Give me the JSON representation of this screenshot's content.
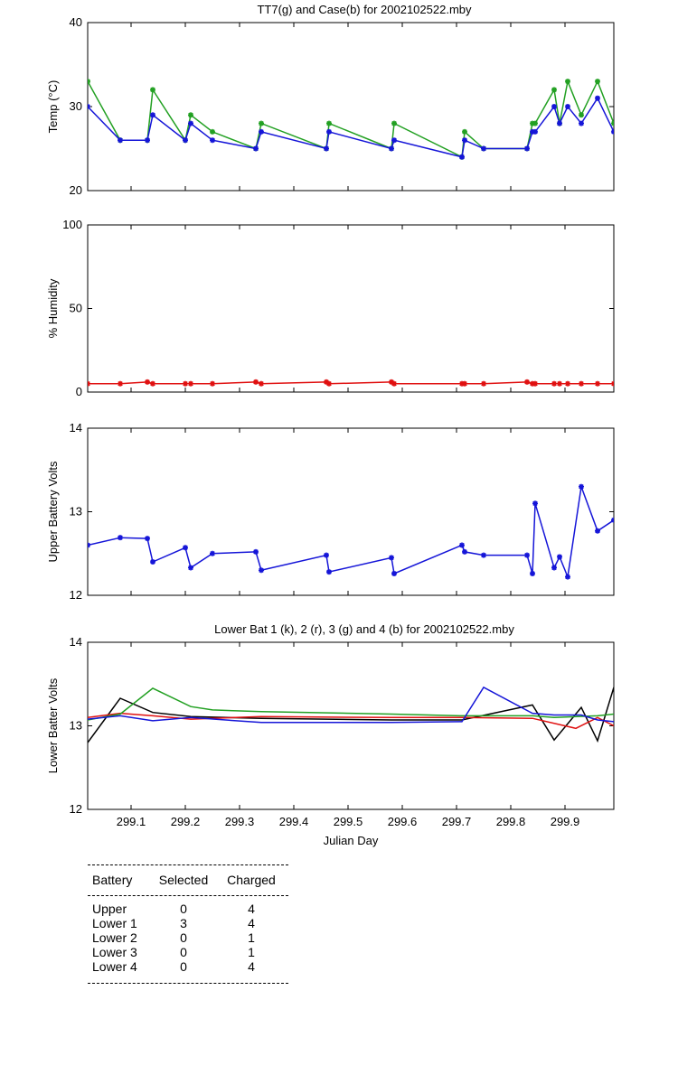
{
  "chart_data": [
    {
      "type": "line",
      "title": "TT7(g) and Case(b) for 2002102522.mby",
      "xlabel": "",
      "ylabel": "Temp  (°C)",
      "xlim": [
        299.02,
        299.99
      ],
      "ylim": [
        20,
        40
      ],
      "yticks": [
        20,
        30,
        40
      ],
      "series": [
        {
          "name": "TT7",
          "color": "#22a022",
          "x": [
            299.02,
            299.08,
            299.13,
            299.14,
            299.2,
            299.21,
            299.25,
            299.33,
            299.34,
            299.46,
            299.465,
            299.58,
            299.585,
            299.71,
            299.715,
            299.75,
            299.83,
            299.84,
            299.845,
            299.88,
            299.89,
            299.905,
            299.93,
            299.96,
            299.99
          ],
          "y": [
            33,
            26,
            26,
            32,
            26,
            29,
            27,
            25,
            28,
            25,
            28,
            25,
            28,
            24,
            27,
            25,
            25,
            28,
            28,
            32,
            28,
            33,
            29,
            33,
            28
          ]
        },
        {
          "name": "Case",
          "color": "#1515d8",
          "x": [
            299.02,
            299.08,
            299.13,
            299.14,
            299.2,
            299.21,
            299.25,
            299.33,
            299.34,
            299.46,
            299.465,
            299.58,
            299.585,
            299.71,
            299.715,
            299.75,
            299.83,
            299.84,
            299.845,
            299.88,
            299.89,
            299.905,
            299.93,
            299.96,
            299.99
          ],
          "y": [
            30,
            26,
            26,
            29,
            26,
            28,
            26,
            25,
            27,
            25,
            27,
            25,
            26,
            24,
            26,
            25,
            25,
            27,
            27,
            30,
            28,
            30,
            28,
            31,
            27
          ]
        }
      ]
    },
    {
      "type": "line",
      "title": "",
      "xlabel": "",
      "ylabel": "% Humidity",
      "xlim": [
        299.02,
        299.99
      ],
      "ylim": [
        0,
        100
      ],
      "yticks": [
        0,
        50,
        100
      ],
      "series": [
        {
          "name": "Humidity",
          "color": "#e01010",
          "x": [
            299.02,
            299.08,
            299.13,
            299.14,
            299.2,
            299.21,
            299.25,
            299.33,
            299.34,
            299.46,
            299.465,
            299.58,
            299.585,
            299.71,
            299.715,
            299.75,
            299.83,
            299.84,
            299.845,
            299.88,
            299.89,
            299.905,
            299.93,
            299.96,
            299.99
          ],
          "y": [
            5,
            5,
            6,
            5,
            5,
            5,
            5,
            6,
            5,
            6,
            5,
            6,
            5,
            5,
            5,
            5,
            6,
            5,
            5,
            5,
            5,
            5,
            5,
            5,
            5
          ]
        }
      ]
    },
    {
      "type": "line",
      "title": "",
      "xlabel": "",
      "ylabel": "Upper Battery Volts",
      "xlim": [
        299.02,
        299.99
      ],
      "ylim": [
        12,
        14
      ],
      "yticks": [
        12,
        13,
        14
      ],
      "series": [
        {
          "name": "Upper",
          "color": "#1515d8",
          "x": [
            299.02,
            299.08,
            299.13,
            299.14,
            299.2,
            299.21,
            299.25,
            299.33,
            299.34,
            299.46,
            299.465,
            299.58,
            299.585,
            299.71,
            299.715,
            299.75,
            299.83,
            299.84,
            299.845,
            299.88,
            299.89,
            299.905,
            299.93,
            299.96,
            299.99
          ],
          "y": [
            12.6,
            12.69,
            12.68,
            12.4,
            12.57,
            12.33,
            12.5,
            12.52,
            12.3,
            12.48,
            12.28,
            12.45,
            12.26,
            12.6,
            12.52,
            12.48,
            12.48,
            12.26,
            13.1,
            12.33,
            12.46,
            12.22,
            13.3,
            12.77,
            12.9
          ]
        }
      ]
    },
    {
      "type": "line",
      "title": "Lower Bat 1 (k), 2 (r), 3 (g) and 4 (b) for 2002102522.mby",
      "xlabel": "Julian Day",
      "ylabel": "Lower Batter Volts",
      "xlim": [
        299.02,
        299.99
      ],
      "ylim": [
        12,
        14
      ],
      "yticks": [
        12,
        13,
        14
      ],
      "xticks": [
        "299.1",
        "299.2",
        "299.3",
        "299.4",
        "299.5",
        "299.6",
        "299.7",
        "299.8",
        "299.9"
      ],
      "series": [
        {
          "name": "Lower 1",
          "color": "#000000",
          "x": [
            299.02,
            299.08,
            299.14,
            299.21,
            299.34,
            299.58,
            299.71,
            299.84,
            299.88,
            299.93,
            299.96,
            299.99
          ],
          "y": [
            12.8,
            13.33,
            13.16,
            13.11,
            13.09,
            13.07,
            13.07,
            13.25,
            12.83,
            13.22,
            12.82,
            13.46
          ]
        },
        {
          "name": "Lower 2",
          "color": "#e01010",
          "x": [
            299.02,
            299.08,
            299.14,
            299.21,
            299.34,
            299.58,
            299.71,
            299.84,
            299.92,
            299.96,
            299.99
          ],
          "y": [
            13.1,
            13.15,
            13.12,
            13.08,
            13.11,
            13.1,
            13.1,
            13.09,
            12.97,
            13.1,
            13.0
          ]
        },
        {
          "name": "Lower 3",
          "color": "#22a022",
          "x": [
            299.02,
            299.08,
            299.14,
            299.21,
            299.25,
            299.34,
            299.58,
            299.71,
            299.84,
            299.88,
            299.96,
            299.99
          ],
          "y": [
            13.07,
            13.14,
            13.45,
            13.23,
            13.19,
            13.17,
            13.14,
            13.12,
            13.12,
            13.1,
            13.12,
            13.14
          ]
        },
        {
          "name": "Lower 4",
          "color": "#1515d8",
          "x": [
            299.02,
            299.08,
            299.14,
            299.21,
            299.34,
            299.58,
            299.71,
            299.75,
            299.84,
            299.88,
            299.93,
            299.96,
            299.99
          ],
          "y": [
            13.08,
            13.12,
            13.06,
            13.1,
            13.04,
            13.04,
            13.05,
            13.46,
            13.15,
            13.13,
            13.13,
            13.07,
            13.05
          ]
        }
      ]
    }
  ],
  "battery_table": {
    "headers": [
      "Battery",
      "Selected",
      "Charged"
    ],
    "rows": [
      [
        "Upper",
        "0",
        "4"
      ],
      [
        "Lower 1",
        "3",
        "4"
      ],
      [
        "Lower 2",
        "0",
        "1"
      ],
      [
        "Lower 3",
        "0",
        "1"
      ],
      [
        "Lower 4",
        "0",
        "4"
      ]
    ]
  }
}
